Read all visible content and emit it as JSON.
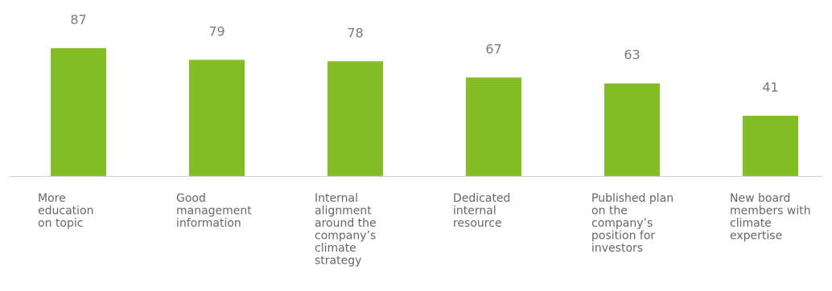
{
  "chart_data": {
    "type": "bar",
    "categories": [
      [
        "More",
        "education",
        "on topic"
      ],
      [
        "Good",
        "management",
        "information"
      ],
      [
        "Internal",
        "alignment",
        "around the",
        "company’s",
        "climate",
        "strategy"
      ],
      [
        "Dedicated",
        "internal",
        "resource"
      ],
      [
        "Published plan",
        "on the",
        "company’s",
        "position for",
        "investors"
      ],
      [
        "New board",
        "members with",
        "climate",
        "expertise"
      ]
    ],
    "values": [
      87,
      79,
      78,
      67,
      63,
      41
    ],
    "data_labels": [
      "87",
      "79",
      "78",
      "67",
      "63",
      "41"
    ],
    "title": "",
    "xlabel": "",
    "ylabel": "",
    "ylim": [
      0,
      100
    ],
    "grid": false,
    "legend": "none",
    "colors": {
      "bar": "#84bd26",
      "data_label": "#7a7a7a",
      "category_label": "#666666",
      "axis": "#cfcfcf"
    }
  }
}
